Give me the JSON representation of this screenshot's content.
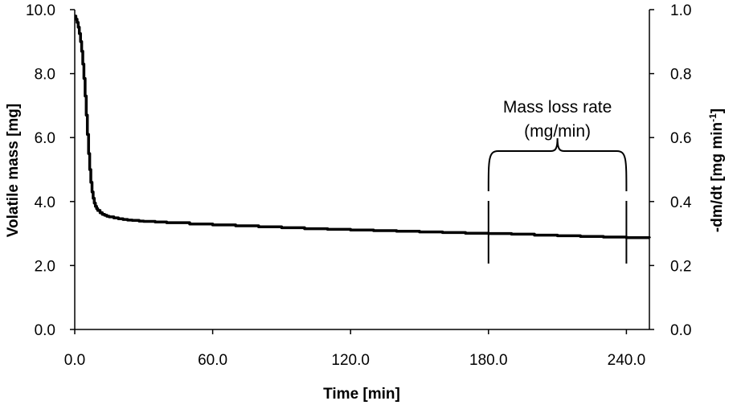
{
  "chart_data": {
    "type": "line",
    "xlabel": "Time [min]",
    "ylabel": "Volatile mass [mg]",
    "y2label": "-dm/dt [mg min",
    "y2label_sup": "-1",
    "y2label_end": "]",
    "xlim": [
      0,
      250
    ],
    "ylim": [
      0,
      10
    ],
    "y2lim": [
      0,
      1
    ],
    "xticks": [
      0,
      60,
      120,
      180,
      240
    ],
    "xtick_labels": [
      "0.0",
      "60.0",
      "120.0",
      "180.0",
      "240.0"
    ],
    "yticks": [
      0,
      2,
      4,
      6,
      8,
      10
    ],
    "ytick_labels": [
      "0.0",
      "2.0",
      "4.0",
      "6.0",
      "8.0",
      "10.0"
    ],
    "y2ticks": [
      0,
      0.2,
      0.4,
      0.6,
      0.8,
      1.0
    ],
    "y2tick_labels": [
      "0.0",
      "0.2",
      "0.4",
      "0.6",
      "0.8",
      "1.0"
    ],
    "grid": false,
    "series": [
      {
        "x": [
          0,
          0.5,
          1,
          1.5,
          2,
          2.5,
          3,
          3.5,
          4,
          4.5,
          5,
          5.5,
          6,
          6.5,
          7,
          7.5,
          8,
          8.5,
          9,
          9.5,
          10,
          11,
          12,
          13,
          14,
          15,
          17,
          19,
          21,
          23,
          25,
          28,
          30,
          35,
          40,
          50,
          60,
          70,
          80,
          90,
          100,
          110,
          120,
          130,
          140,
          150,
          160,
          170,
          180,
          190,
          200,
          210,
          220,
          230,
          240,
          250
        ],
        "y": [
          9.8,
          9.7,
          9.6,
          9.45,
          9.25,
          9.0,
          8.7,
          8.3,
          7.85,
          7.3,
          6.7,
          6.1,
          5.5,
          5.0,
          4.6,
          4.3,
          4.1,
          3.95,
          3.85,
          3.78,
          3.72,
          3.65,
          3.6,
          3.57,
          3.54,
          3.52,
          3.49,
          3.46,
          3.44,
          3.42,
          3.41,
          3.39,
          3.38,
          3.36,
          3.34,
          3.3,
          3.27,
          3.24,
          3.21,
          3.18,
          3.15,
          3.13,
          3.11,
          3.09,
          3.07,
          3.05,
          3.03,
          3.01,
          3.0,
          2.98,
          2.95,
          2.93,
          2.91,
          2.89,
          2.87,
          2.86
        ]
      }
    ],
    "annotation": {
      "line1": "Mass loss rate",
      "line2": "(mg/min)",
      "x_start": 180,
      "x_end": 240
    }
  }
}
